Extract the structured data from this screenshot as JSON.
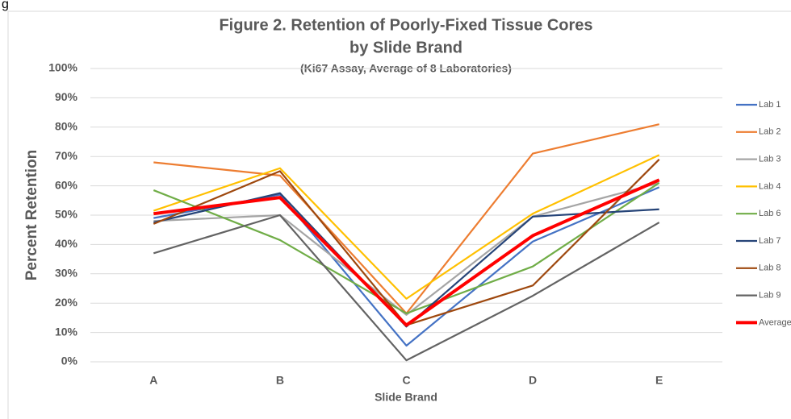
{
  "fragment": "g",
  "chart_data": {
    "type": "line",
    "title": [
      "Figure 2.  Retention of Poorly-Fixed Tissue Cores",
      "by Slide Brand"
    ],
    "subtitle": "(Ki67 Assay, Average of 8 Laboratories)",
    "x_label": "Slide Brand",
    "y_label": "Percent Retention",
    "categories": [
      "A",
      "B",
      "C",
      "D",
      "E"
    ],
    "series": [
      {
        "name": "Lab 1",
        "color": "#4472c4",
        "values": [
          49,
          57,
          5.5,
          41,
          59.5
        ]
      },
      {
        "name": "Lab 2",
        "color": "#ed7d31",
        "values": [
          68,
          63.5,
          16.5,
          71,
          81
        ]
      },
      {
        "name": "Lab 3",
        "color": "#a5a5a5",
        "values": [
          48,
          50,
          16,
          49.5,
          61
        ]
      },
      {
        "name": "Lab 4",
        "color": "#ffc000",
        "values": [
          51.5,
          66,
          21.5,
          50.5,
          70.5
        ]
      },
      {
        "name": "Lab 6",
        "color": "#70ad47",
        "values": [
          58.5,
          41.5,
          16.5,
          32.5,
          61
        ]
      },
      {
        "name": "Lab 7",
        "color": "#264478",
        "values": [
          47.5,
          57.5,
          12,
          49.5,
          52
        ]
      },
      {
        "name": "Lab 8",
        "color": "#9e480e",
        "values": [
          47,
          65,
          12.5,
          26,
          69
        ]
      },
      {
        "name": "Lab 9",
        "color": "#636363",
        "values": [
          37,
          50,
          0.5,
          22.5,
          47.5
        ]
      },
      {
        "name": "Average",
        "color": "#ff0000",
        "values": [
          50.5,
          56,
          12.5,
          43,
          62
        ]
      }
    ],
    "ylim": [
      0,
      100
    ],
    "yticks": [
      {
        "value": 0,
        "label": "0%"
      },
      {
        "value": 10,
        "label": "10%"
      },
      {
        "value": 20,
        "label": "20%"
      },
      {
        "value": 30,
        "label": "30%"
      },
      {
        "value": 40,
        "label": "40%"
      },
      {
        "value": 50,
        "label": "50%"
      },
      {
        "value": 60,
        "label": "60%"
      },
      {
        "value": 70,
        "label": "70%"
      },
      {
        "value": 80,
        "label": "80%"
      },
      {
        "value": 90,
        "label": "90%"
      },
      {
        "value": 100,
        "label": "100%"
      }
    ],
    "grid": true,
    "legend": "right"
  }
}
